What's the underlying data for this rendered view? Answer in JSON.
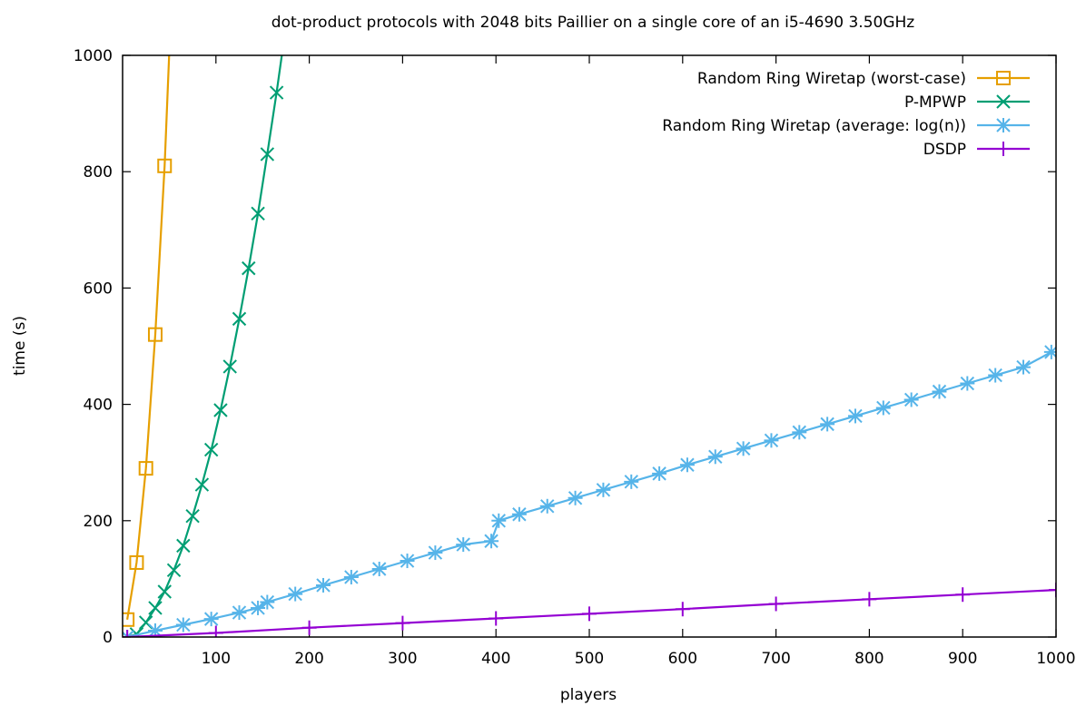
{
  "chart_data": {
    "type": "line",
    "title": "dot-product protocols with 2048 bits Paillier on a single core of an i5-4690 3.50GHz",
    "xlabel": "players",
    "ylabel": "time (s)",
    "xlim": [
      0,
      1000
    ],
    "ylim": [
      0,
      1000
    ],
    "xticks": [
      100,
      200,
      300,
      400,
      500,
      600,
      700,
      800,
      900,
      1000
    ],
    "yticks": [
      0,
      200,
      400,
      600,
      800,
      1000
    ],
    "grid": false,
    "legend_position": "top-right",
    "series": [
      {
        "name": "Random Ring Wiretap (worst-case)",
        "color": "#e69f00",
        "marker": "square",
        "x": [
          5,
          15,
          25,
          35,
          45,
          55
        ],
        "y": [
          30,
          128,
          290,
          520,
          810,
          1200
        ]
      },
      {
        "name": "P-MPWP",
        "color": "#009e73",
        "marker": "x",
        "x": [
          5,
          15,
          25,
          35,
          45,
          55,
          65,
          75,
          85,
          95,
          105,
          115,
          125,
          135,
          145,
          155,
          165,
          175,
          185
        ],
        "y": [
          0,
          5,
          25,
          50,
          78,
          115,
          157,
          208,
          262,
          322,
          390,
          465,
          547,
          634,
          728,
          830,
          936,
          1050,
          1170
        ]
      },
      {
        "name": "Random Ring Wiretap (average: log(n))",
        "color": "#56b4e9",
        "marker": "star",
        "x": [
          5,
          35,
          65,
          95,
          125,
          145,
          155,
          185,
          215,
          245,
          275,
          305,
          335,
          365,
          395,
          403,
          425,
          455,
          485,
          515,
          545,
          575,
          605,
          635,
          665,
          695,
          725,
          755,
          785,
          815,
          845,
          875,
          905,
          935,
          965,
          995
        ],
        "y": [
          0,
          11,
          21,
          31,
          42,
          50,
          60,
          74,
          89,
          103,
          117,
          131,
          145,
          159,
          165,
          200,
          211,
          225,
          239,
          253,
          267,
          281,
          296,
          310,
          324,
          338,
          352,
          366,
          380,
          394,
          408,
          422,
          436,
          450,
          464,
          490
        ]
      },
      {
        "name": "DSDP",
        "color": "#9400d3",
        "marker": "plus",
        "x": [
          5,
          100,
          200,
          300,
          400,
          500,
          600,
          700,
          800,
          900,
          1000
        ],
        "y": [
          0,
          7,
          16,
          24,
          32,
          40,
          48,
          57,
          65,
          73,
          81
        ]
      }
    ]
  }
}
